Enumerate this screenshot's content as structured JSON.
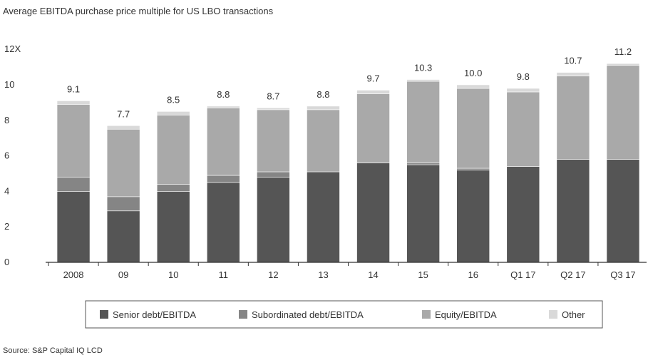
{
  "title": "Average EBITDA purchase price multiple for US LBO transactions",
  "source": "Source: S&P Capital IQ LCD",
  "chart_data": {
    "type": "bar",
    "stacked": true,
    "title": "Average EBITDA purchase price multiple for US LBO transactions",
    "xlabel": "",
    "ylabel": "",
    "ylim": [
      0,
      12
    ],
    "y_ticks": [
      "0",
      "2",
      "4",
      "6",
      "8",
      "10",
      "12X"
    ],
    "y_tick_values": [
      0,
      2,
      4,
      6,
      8,
      10,
      12
    ],
    "categories": [
      "2008",
      "09",
      "10",
      "11",
      "12",
      "13",
      "14",
      "15",
      "16",
      "Q1 17",
      "Q2 17",
      "Q3 17"
    ],
    "totals": [
      9.1,
      7.7,
      8.5,
      8.8,
      8.7,
      8.8,
      9.7,
      10.3,
      10.0,
      9.8,
      10.7,
      11.2
    ],
    "total_labels": [
      "9.1",
      "7.7",
      "8.5",
      "8.8",
      "8.7",
      "8.8",
      "9.7",
      "10.3",
      "10.0",
      "9.8",
      "10.7",
      "11.2"
    ],
    "series": [
      {
        "name": "Senior debt/EBITDA",
        "color": "#555555",
        "values": [
          4.0,
          2.9,
          4.0,
          4.5,
          4.8,
          5.1,
          5.6,
          5.5,
          5.2,
          5.4,
          5.8,
          5.8
        ]
      },
      {
        "name": "Subordinated debt/EBITDA",
        "color": "#858585",
        "values": [
          0.8,
          0.8,
          0.4,
          0.4,
          0.3,
          0.0,
          0.0,
          0.1,
          0.1,
          0.0,
          0.0,
          0.0
        ]
      },
      {
        "name": "Equity/EBITDA",
        "color": "#a9a9a9",
        "values": [
          4.1,
          3.8,
          3.9,
          3.8,
          3.5,
          3.5,
          3.9,
          4.6,
          4.5,
          4.2,
          4.7,
          5.3
        ]
      },
      {
        "name": "Other",
        "color": "#d9d9d9",
        "values": [
          0.2,
          0.2,
          0.2,
          0.1,
          0.1,
          0.2,
          0.2,
          0.1,
          0.2,
          0.2,
          0.2,
          0.1
        ]
      }
    ],
    "grid": false,
    "legend_position": "bottom"
  }
}
